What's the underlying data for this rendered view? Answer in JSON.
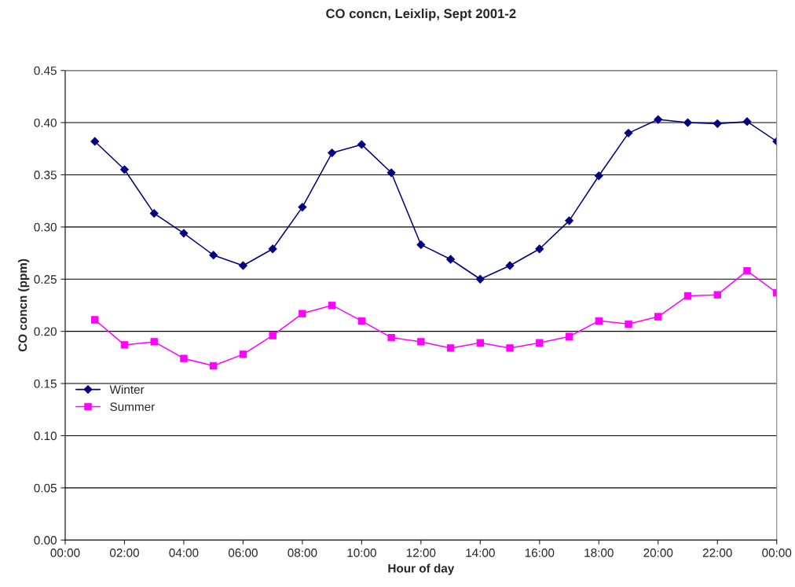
{
  "chart_data": {
    "type": "line",
    "title": "CO concn, Leixlip, Sept 2001-2",
    "xlabel": "Hour of day",
    "ylabel": "CO concn (ppm)",
    "x": [
      1,
      2,
      3,
      4,
      5,
      6,
      7,
      8,
      9,
      10,
      11,
      12,
      13,
      14,
      15,
      16,
      17,
      18,
      19,
      20,
      21,
      22,
      23,
      24
    ],
    "series": [
      {
        "name": "Winter",
        "color": "#000080",
        "marker": "diamond",
        "values": [
          0.382,
          0.355,
          0.313,
          0.294,
          0.273,
          0.263,
          0.279,
          0.319,
          0.371,
          0.379,
          0.352,
          0.283,
          0.269,
          0.25,
          0.263,
          0.279,
          0.306,
          0.349,
          0.39,
          0.403,
          0.4,
          0.399,
          0.401,
          0.382
        ]
      },
      {
        "name": "Summer",
        "color": "#ff00ff",
        "marker": "square",
        "values": [
          0.211,
          0.187,
          0.19,
          0.174,
          0.167,
          0.178,
          0.196,
          0.217,
          0.225,
          0.21,
          0.194,
          0.19,
          0.184,
          0.189,
          0.184,
          0.189,
          0.195,
          0.21,
          0.207,
          0.214,
          0.234,
          0.235,
          0.258,
          0.237
        ]
      }
    ],
    "xlim": [
      0,
      24
    ],
    "xticks": [
      {
        "value": 0,
        "label": "00:00"
      },
      {
        "value": 2,
        "label": "02:00"
      },
      {
        "value": 4,
        "label": "04:00"
      },
      {
        "value": 6,
        "label": "06:00"
      },
      {
        "value": 8,
        "label": "08:00"
      },
      {
        "value": 10,
        "label": "10:00"
      },
      {
        "value": 12,
        "label": "12:00"
      },
      {
        "value": 14,
        "label": "14:00"
      },
      {
        "value": 16,
        "label": "16:00"
      },
      {
        "value": 18,
        "label": "18:00"
      },
      {
        "value": 20,
        "label": "20:00"
      },
      {
        "value": 22,
        "label": "22:00"
      },
      {
        "value": 24,
        "label": "00:00"
      }
    ],
    "ylim": [
      0,
      0.45
    ],
    "yticks": [
      {
        "value": 0,
        "label": "0.00"
      },
      {
        "value": 0.05,
        "label": "0.05"
      },
      {
        "value": 0.1,
        "label": "0.10"
      },
      {
        "value": 0.15,
        "label": "0.15"
      },
      {
        "value": 0.2,
        "label": "0.20"
      },
      {
        "value": 0.25,
        "label": "0.25"
      },
      {
        "value": 0.3,
        "label": "0.30"
      },
      {
        "value": 0.35,
        "label": "0.35"
      },
      {
        "value": 0.4,
        "label": "0.40"
      },
      {
        "value": 0.45,
        "label": "0.45"
      }
    ],
    "grid": "y",
    "legend": "left",
    "line_style": "solid"
  }
}
